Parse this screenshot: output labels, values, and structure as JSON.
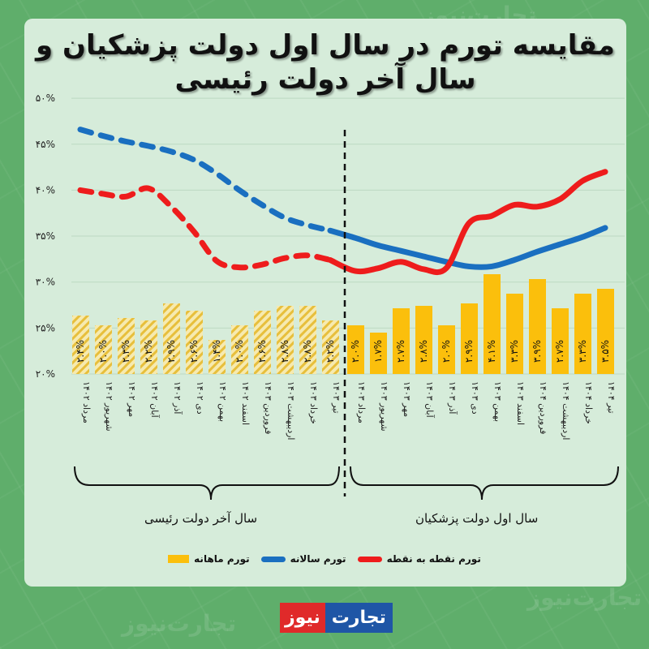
{
  "title_line1": "مقایسه تورم در سال اول دولت پزشکیان و",
  "title_line2": "سال آخر دولت رئیسی",
  "legend": {
    "monthly": "تورم ماهانه",
    "annual": "تورم سالانه",
    "point": "تورم نقطه به نقطه"
  },
  "periods": {
    "left": "سال آخر دولت رئیسی",
    "right": "سال اول دولت پزشکیان"
  },
  "logo": {
    "part1": "تجارت",
    "part2": "نیوز"
  },
  "watermark": "تجارت‌نیوز",
  "colors": {
    "annual": "#1a6fc0",
    "point": "#ee1c1c",
    "monthly": "#fbbf0c",
    "monthly_hatched_bg": "#f6e7a8",
    "card": "#d6ecda",
    "background": "#5fae6b"
  },
  "chart_data": {
    "type": "bar+line",
    "title": "مقایسه تورم در سال اول دولت پزشکیان و سال آخر دولت رئیسی",
    "yaxis_ticks": [
      "۲۰%",
      "۲۵%",
      "۳۰%",
      "۳۵%",
      "۴۰%",
      "۴۵%",
      "۵۰%"
    ],
    "ylim": [
      20,
      50
    ],
    "grid": true,
    "legend_position": "bottom",
    "categories": [
      "مرداد ۱۴۰۲",
      "شهریور ۱۴۰۲",
      "مهر ۱۴۰۲",
      "آبان ۱۴۰۲",
      "آذر ۱۴۰۲",
      "دی ۱۴۰۲",
      "بهمن ۱۴۰۲",
      "اسفند ۱۴۰۲",
      "فروردین ۱۴۰۳",
      "اردیبهشت ۱۴۰۳",
      "خرداد ۱۴۰۳",
      "تیر ۱۴۰۳",
      "مرداد ۱۴۰۳",
      "شهریور ۱۴۰۳",
      "مهر ۱۴۰۳",
      "آبان ۱۴۰۳",
      "آذر ۱۴۰۳",
      "دی ۱۴۰۳",
      "بهمن ۱۴۰۳",
      "اسفند ۱۴۰۳",
      "فروردین ۱۴۰۴",
      "اردیبهشت ۱۴۰۴",
      "خرداد ۱۴۰۴",
      "تیر ۱۴۰۴"
    ],
    "divider_after_index": 11,
    "series": [
      {
        "name": "تورم ماهانه",
        "type": "bar",
        "values": [
          2.4,
          2.0,
          2.3,
          2.2,
          2.9,
          2.6,
          1.4,
          2.0,
          2.6,
          2.8,
          2.8,
          2.2,
          2.0,
          1.7,
          2.7,
          2.8,
          2.0,
          2.9,
          4.1,
          3.3,
          3.9,
          2.7,
          3.3,
          3.5
        ],
        "labels": [
          "۲.۴%",
          "۲.۰%",
          "۲.۳%",
          "۲.۲%",
          "۲.۹%",
          "۲.۶%",
          "۱.۴%",
          "۲.۰%",
          "۲.۶%",
          "۲.۸%",
          "۲.۸%",
          "۲.۲%",
          "۲.۰%",
          "۱.۷%",
          "۲.۷%",
          "۲.۸%",
          "۲.۰%",
          "۲.۹%",
          "۴.۱%",
          "۳.۳%",
          "۳.۹%",
          "۲.۷%",
          "۳.۳%",
          "۳.۵%"
        ]
      },
      {
        "name": "تورم سالانه",
        "type": "line",
        "values": [
          46.6,
          45.9,
          45.3,
          44.8,
          44.2,
          43.3,
          41.8,
          40.0,
          38.4,
          37.0,
          36.2,
          35.6,
          34.8,
          34.0,
          33.4,
          32.8,
          32.2,
          31.7,
          31.7,
          32.4,
          33.3,
          34.1,
          34.9,
          35.9
        ]
      },
      {
        "name": "تورم نقطه به نقطه",
        "type": "line",
        "values": [
          40.0,
          39.6,
          39.3,
          40.2,
          38.2,
          35.5,
          32.3,
          31.6,
          31.9,
          32.6,
          32.9,
          32.4,
          31.2,
          31.5,
          32.2,
          31.4,
          31.5,
          36.4,
          37.2,
          38.4,
          38.2,
          39.0,
          41.0,
          42.0
        ]
      }
    ]
  }
}
